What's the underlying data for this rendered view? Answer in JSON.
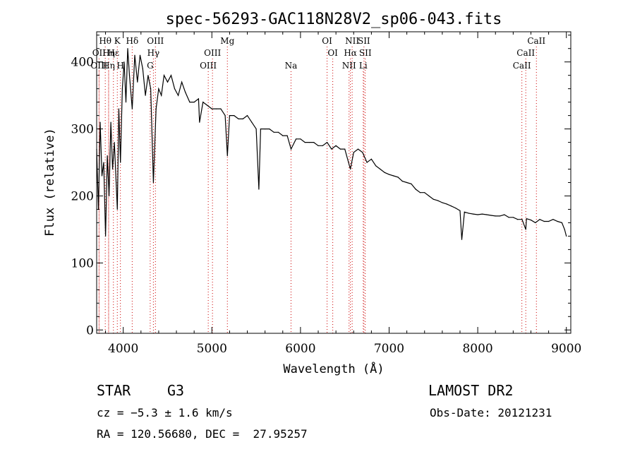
{
  "chart_data": {
    "type": "line",
    "title": "spec-56293-GAC118N28V2_sp06-043.fits",
    "xlabel": "Wavelength (Å)",
    "ylabel": "Flux (relative)",
    "xlim": [
      3700,
      9050
    ],
    "ylim": [
      -5,
      445
    ],
    "xticks": [
      4000,
      5000,
      6000,
      7000,
      8000,
      9000
    ],
    "yticks": [
      0,
      100,
      200,
      300,
      400
    ],
    "series": [
      {
        "name": "flux",
        "x": [
          3700,
          3720,
          3740,
          3760,
          3780,
          3800,
          3820,
          3840,
          3860,
          3880,
          3900,
          3920,
          3933,
          3950,
          3968,
          3990,
          4010,
          4030,
          4050,
          4070,
          4101,
          4130,
          4160,
          4190,
          4220,
          4250,
          4280,
          4310,
          4340,
          4370,
          4400,
          4430,
          4460,
          4500,
          4540,
          4580,
          4620,
          4660,
          4700,
          4750,
          4800,
          4850,
          4861,
          4900,
          4950,
          5000,
          5050,
          5100,
          5150,
          5175,
          5200,
          5250,
          5300,
          5350,
          5400,
          5450,
          5500,
          5530,
          5550,
          5600,
          5650,
          5700,
          5750,
          5800,
          5850,
          5893,
          5950,
          6000,
          6050,
          6100,
          6150,
          6200,
          6250,
          6300,
          6350,
          6400,
          6450,
          6500,
          6563,
          6600,
          6650,
          6700,
          6750,
          6800,
          6850,
          6900,
          6950,
          7000,
          7050,
          7100,
          7150,
          7200,
          7250,
          7300,
          7350,
          7400,
          7450,
          7500,
          7550,
          7600,
          7650,
          7700,
          7750,
          7800,
          7820,
          7850,
          7900,
          7950,
          8000,
          8050,
          8100,
          8150,
          8200,
          8250,
          8300,
          8350,
          8400,
          8450,
          8500,
          8542,
          8550,
          8600,
          8650,
          8700,
          8750,
          8800,
          8850,
          8900,
          8950,
          8980,
          9000
        ],
        "y": [
          270,
          180,
          310,
          230,
          250,
          140,
          260,
          200,
          310,
          240,
          280,
          220,
          180,
          330,
          250,
          360,
          400,
          340,
          420,
          380,
          330,
          410,
          370,
          410,
          390,
          350,
          380,
          360,
          220,
          330,
          360,
          350,
          380,
          370,
          380,
          360,
          350,
          370,
          355,
          340,
          340,
          345,
          310,
          340,
          335,
          330,
          330,
          330,
          320,
          260,
          320,
          320,
          315,
          315,
          320,
          310,
          300,
          210,
          300,
          300,
          300,
          295,
          295,
          290,
          290,
          270,
          285,
          285,
          280,
          280,
          280,
          275,
          275,
          280,
          270,
          275,
          270,
          270,
          240,
          265,
          270,
          265,
          250,
          255,
          245,
          240,
          235,
          232,
          230,
          228,
          222,
          220,
          218,
          210,
          205,
          205,
          200,
          195,
          193,
          190,
          188,
          185,
          182,
          178,
          135,
          176,
          174,
          173,
          172,
          173,
          172,
          171,
          170,
          170,
          172,
          168,
          168,
          165,
          165,
          150,
          166,
          164,
          160,
          165,
          162,
          162,
          165,
          162,
          160,
          150,
          140
        ]
      }
    ],
    "line_markers": [
      {
        "label": "Hθ",
        "x": 3797,
        "row": 1
      },
      {
        "label": "OII",
        "x": 3727,
        "row": 2
      },
      {
        "label": "OIII",
        "x": 3727,
        "row": 3
      },
      {
        "label": "Hη",
        "x": 3835,
        "row": 2
      },
      {
        "label": "Hε",
        "x": 3889,
        "row": 2
      },
      {
        "label": "Hη",
        "x": 3835,
        "row": 3
      },
      {
        "label": "K",
        "x": 3933,
        "row": 1
      },
      {
        "label": "H",
        "x": 3968,
        "row": 3
      },
      {
        "label": "Hδ",
        "x": 4101,
        "row": 1
      },
      {
        "label": "OIII",
        "x": 4363,
        "row": 1
      },
      {
        "label": "Hγ",
        "x": 4340,
        "row": 2
      },
      {
        "label": "G",
        "x": 4304,
        "row": 3
      },
      {
        "label": "Mg",
        "x": 5175,
        "row": 1
      },
      {
        "label": "OIII",
        "x": 5007,
        "row": 2
      },
      {
        "label": "OIII",
        "x": 4959,
        "row": 3
      },
      {
        "label": "Na",
        "x": 5893,
        "row": 3
      },
      {
        "label": "OI",
        "x": 6300,
        "row": 1
      },
      {
        "label": "OI",
        "x": 6364,
        "row": 2
      },
      {
        "label": "NII",
        "x": 6583,
        "row": 1
      },
      {
        "label": "SII",
        "x": 6716,
        "row": 1
      },
      {
        "label": "Hα",
        "x": 6563,
        "row": 2
      },
      {
        "label": "SII",
        "x": 6731,
        "row": 2
      },
      {
        "label": "NII",
        "x": 6548,
        "row": 3
      },
      {
        "label": "Li",
        "x": 6708,
        "row": 3
      },
      {
        "label": "CaII",
        "x": 8662,
        "row": 1
      },
      {
        "label": "CaII",
        "x": 8542,
        "row": 2
      },
      {
        "label": "CaII",
        "x": 8498,
        "row": 3
      }
    ]
  },
  "info": {
    "object_type": "STAR",
    "subclass": "G3",
    "survey": "LAMOST DR2",
    "cz": "cz = −5.3 ± 1.6 km/s",
    "obs_date": "Obs-Date: 20121231",
    "coords": "RA = 120.56680, DEC =  27.95257"
  }
}
